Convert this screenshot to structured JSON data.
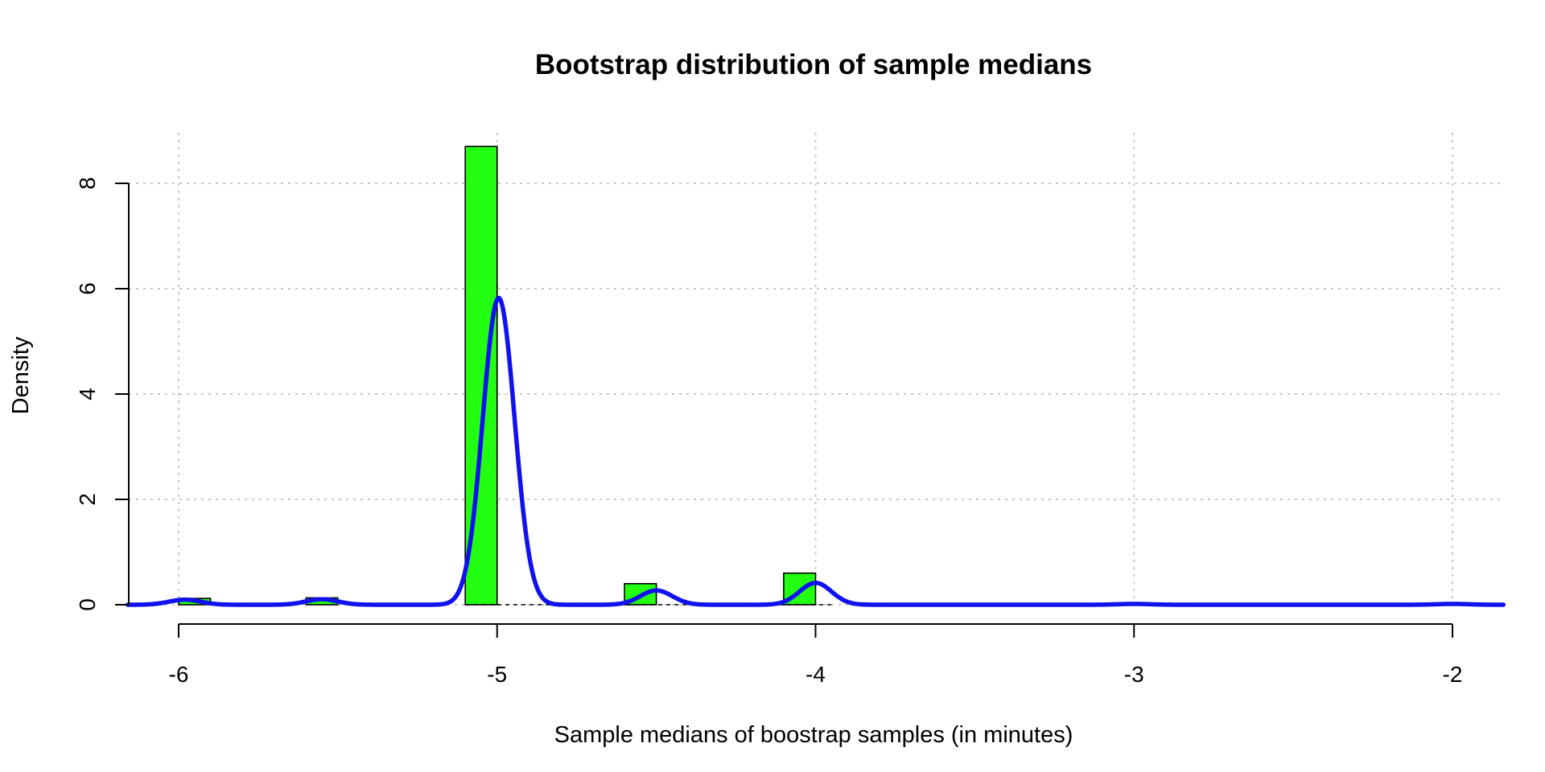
{
  "chart_data": {
    "type": "bar",
    "title": "Bootstrap distribution of sample medians",
    "xlabel": "Sample medians of boostrap samples (in minutes)",
    "ylabel": "Density",
    "xlim": [
      -6.16,
      -1.84
    ],
    "ylim": [
      0,
      8.6
    ],
    "x_ticks": [
      {
        "value": -6,
        "label": "-6"
      },
      {
        "value": -5,
        "label": "-5"
      },
      {
        "value": -4,
        "label": "-4"
      },
      {
        "value": -3,
        "label": "-3"
      },
      {
        "value": -2,
        "label": "-2"
      }
    ],
    "y_ticks": [
      {
        "value": 0,
        "label": "0"
      },
      {
        "value": 2,
        "label": "2"
      },
      {
        "value": 4,
        "label": "4"
      },
      {
        "value": 6,
        "label": "6"
      },
      {
        "value": 8,
        "label": "8"
      }
    ],
    "grid": true,
    "bin_width": 0.1,
    "bars": [
      {
        "x0": -6.0,
        "x1": -5.9,
        "density": 0.12
      },
      {
        "x0": -5.6,
        "x1": -5.5,
        "density": 0.13
      },
      {
        "x0": -5.1,
        "x1": -5.0,
        "density": 8.7
      },
      {
        "x0": -4.6,
        "x1": -4.5,
        "density": 0.4
      },
      {
        "x0": -4.1,
        "x1": -4.0,
        "density": 0.6
      }
    ],
    "median_marker_x": -5.0,
    "density_curve": {
      "bandwidth": 0.05,
      "components": [
        {
          "center": -5.98,
          "weight": 0.012
        },
        {
          "center": -5.55,
          "weight": 0.013
        },
        {
          "center": -4.995,
          "weight": 0.73
        },
        {
          "center": -4.5,
          "weight": 0.034
        },
        {
          "center": -4.0,
          "weight": 0.052
        },
        {
          "center": -3.0,
          "weight": 0.002
        },
        {
          "center": -2.0,
          "weight": 0.002
        }
      ]
    },
    "colors": {
      "bar_fill": "#22ff10",
      "density_line": "#1111ee",
      "grid": "#c8c8c8",
      "axis": "#000000"
    }
  }
}
